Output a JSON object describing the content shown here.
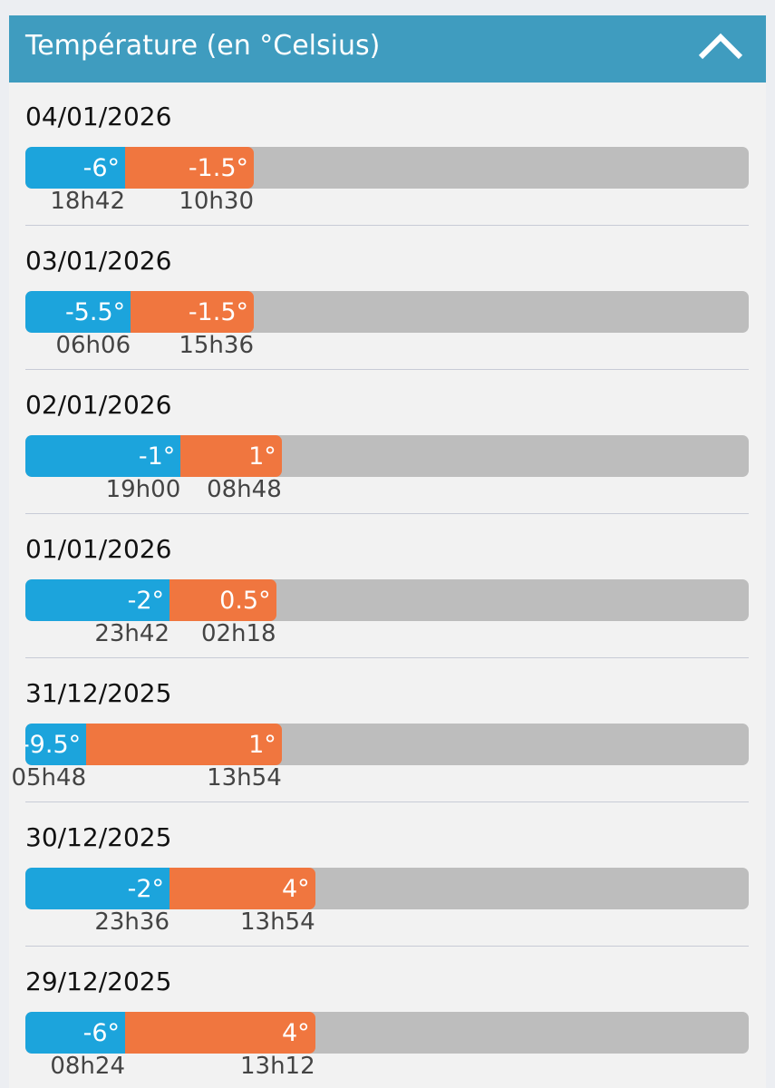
{
  "header": {
    "title": "Température (en °Celsius)"
  },
  "days": [
    {
      "date": "04/01/2026",
      "min": -6,
      "min_label": "-6°",
      "min_time": "18h42",
      "max": -1.5,
      "max_label": "-1.5°",
      "max_time": "10h30"
    },
    {
      "date": "03/01/2026",
      "min": -5.5,
      "min_label": "-5.5°",
      "min_time": "06h06",
      "max": -1.5,
      "max_label": "-1.5°",
      "max_time": "15h36"
    },
    {
      "date": "02/01/2026",
      "min": -1,
      "min_label": "-1°",
      "min_time": "19h00",
      "max": 1,
      "max_label": "1°",
      "max_time": "08h48"
    },
    {
      "date": "01/01/2026",
      "min": -2,
      "min_label": "-2°",
      "min_time": "23h42",
      "max": 0.5,
      "max_label": "0.5°",
      "max_time": "02h18"
    },
    {
      "date": "31/12/2025",
      "min": -9.5,
      "min_label": "-9.5°",
      "min_time": "05h48",
      "max": 1,
      "max_label": "1°",
      "max_time": "13h54"
    },
    {
      "date": "30/12/2025",
      "min": -2,
      "min_label": "-2°",
      "min_time": "23h36",
      "max": 4,
      "max_label": "4°",
      "max_time": "13h54"
    },
    {
      "date": "29/12/2025",
      "min": -6,
      "min_label": "-6°",
      "min_time": "08h24",
      "max": 4,
      "max_label": "4°",
      "max_time": "13h12"
    }
  ]
}
